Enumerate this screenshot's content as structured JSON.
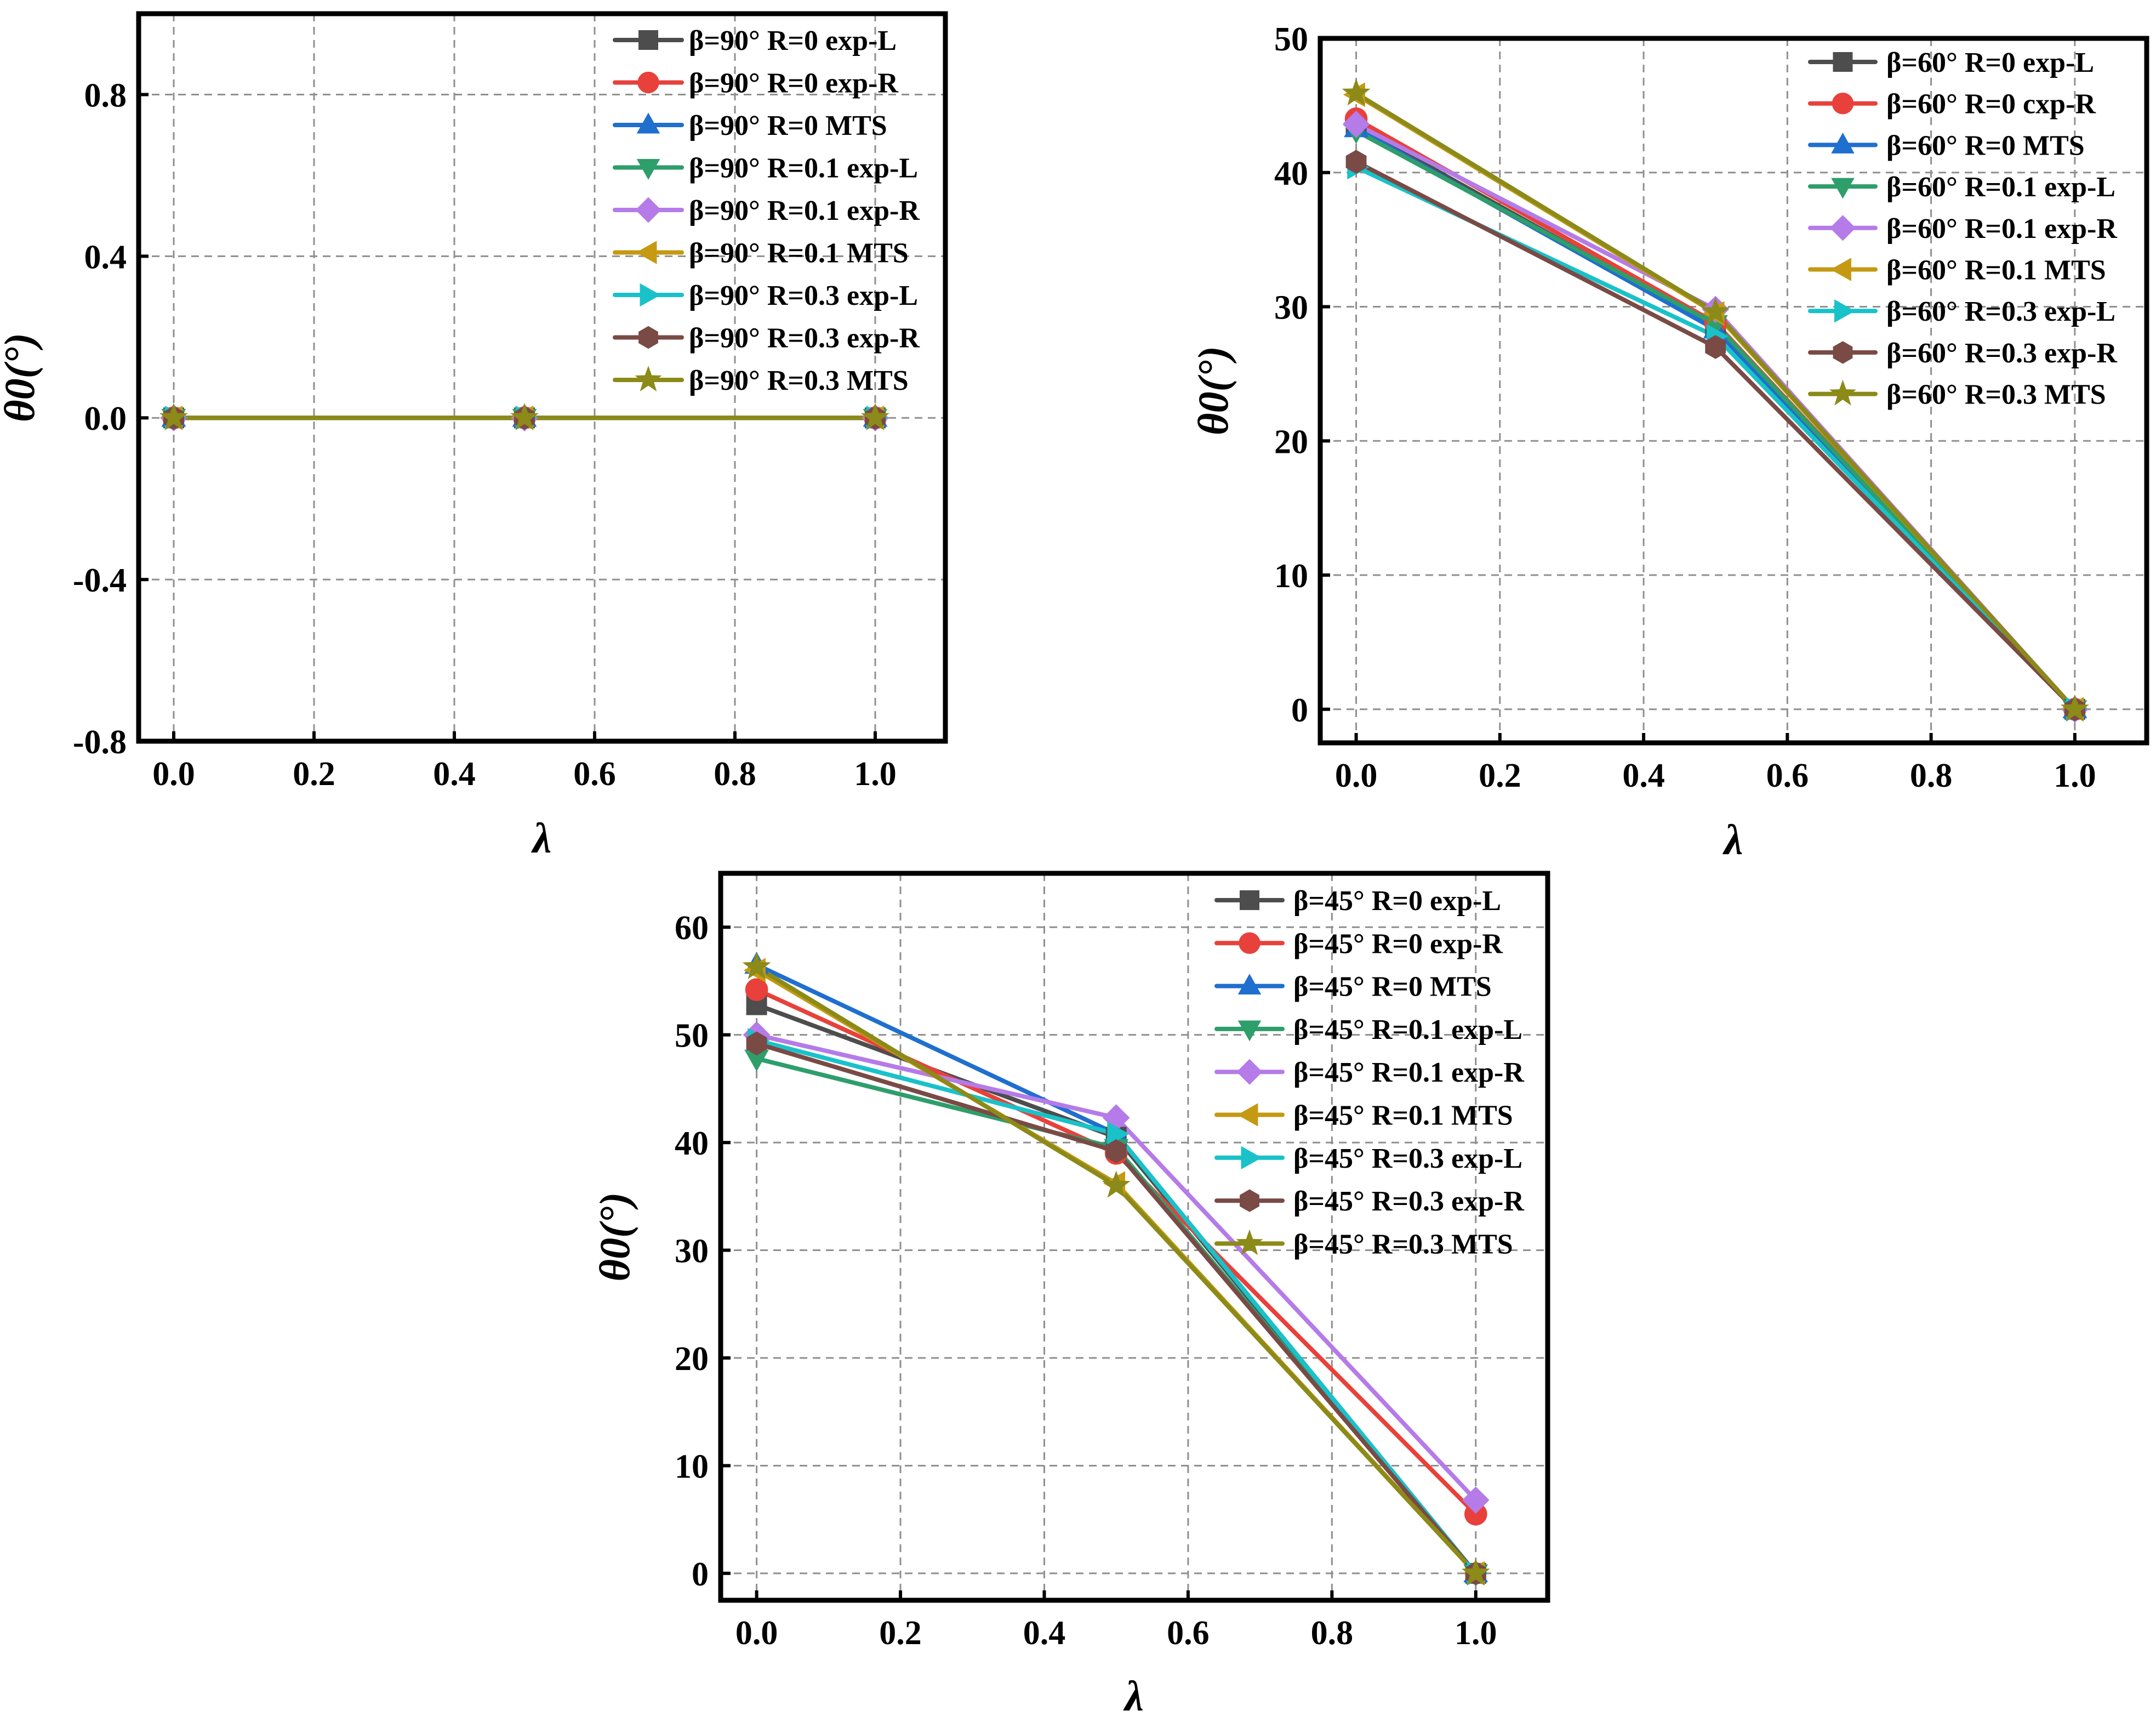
{
  "chart_data": [
    {
      "type": "line",
      "panel": "beta-90",
      "xlabel": "λ",
      "ylabel": "θ0(°)",
      "xlim": [
        -0.05,
        1.1
      ],
      "ylim": [
        -0.8,
        1.0
      ],
      "xticks": [
        0.0,
        0.2,
        0.4,
        0.6,
        0.8,
        1.0
      ],
      "yticks": [
        -0.8,
        -0.4,
        0.0,
        0.4,
        0.8
      ],
      "xtick_labels": [
        "0.0",
        "0.2",
        "0.4",
        "0.6",
        "0.8",
        "1.0"
      ],
      "ytick_labels": [
        "-0.8",
        "-0.4",
        "0.0",
        "0.4",
        "0.8"
      ],
      "grid": true,
      "legend_position": "top-right",
      "x": [
        0.0,
        0.5,
        1.0
      ],
      "series": [
        {
          "name": "β=90° R=0 exp-L",
          "beta": "β=90°",
          "r": "R=0",
          "suffix": "exp-L",
          "color": "#4d4d4d",
          "marker": "square",
          "values": [
            0,
            0,
            0
          ]
        },
        {
          "name": "β=90° R=0 exp-R",
          "beta": "β=90°",
          "r": "R=0",
          "suffix": "exp-R",
          "color": "#e8413b",
          "marker": "circle",
          "values": [
            0,
            0,
            0
          ]
        },
        {
          "name": "β=90° R=0 MTS",
          "beta": "β=90°",
          "r": "R=0",
          "suffix": "MTS",
          "color": "#1f6fcf",
          "marker": "triangle-up",
          "values": [
            0,
            0,
            0
          ]
        },
        {
          "name": "β=90° R=0.1 exp-L",
          "beta": "β=90°",
          "r": "R=0.1",
          "suffix": "exp-L",
          "color": "#2e9e6b",
          "marker": "triangle-down",
          "values": [
            0,
            0,
            0
          ]
        },
        {
          "name": "β=90° R=0.1 exp-R",
          "beta": "β=90°",
          "r": "R=0.1",
          "suffix": "exp-R",
          "color": "#b57be8",
          "marker": "diamond",
          "values": [
            0,
            0,
            0
          ]
        },
        {
          "name": "β=90° R=0.1 MTS",
          "beta": "β=90°",
          "r": "R=0.1",
          "suffix": "MTS",
          "color": "#c59a12",
          "marker": "triangle-left",
          "values": [
            0,
            0,
            0
          ]
        },
        {
          "name": "β=90° R=0.3 exp-L",
          "beta": "β=90°",
          "r": "R=0.3",
          "suffix": "exp-L",
          "color": "#19c2c8",
          "marker": "triangle-right",
          "values": [
            0,
            0,
            0
          ]
        },
        {
          "name": "β=90° R=0.3 exp-R",
          "beta": "β=90°",
          "r": "R=0.3",
          "suffix": "exp-R",
          "color": "#7a4a45",
          "marker": "hexagon",
          "values": [
            0,
            0,
            0
          ]
        },
        {
          "name": "β=90° R=0.3 MTS",
          "beta": "β=90°",
          "r": "R=0.3",
          "suffix": "MTS",
          "color": "#8c8a18",
          "marker": "star",
          "values": [
            0,
            0,
            0
          ]
        }
      ]
    },
    {
      "type": "line",
      "panel": "beta-60",
      "xlabel": "λ",
      "ylabel": "θ0(°)",
      "xlim": [
        -0.05,
        1.1
      ],
      "ylim": [
        -2.5,
        50
      ],
      "xticks": [
        0.0,
        0.2,
        0.4,
        0.6,
        0.8,
        1.0
      ],
      "yticks": [
        0,
        10,
        20,
        30,
        40,
        50
      ],
      "xtick_labels": [
        "0.0",
        "0.2",
        "0.4",
        "0.6",
        "0.8",
        "1.0"
      ],
      "ytick_labels": [
        "0",
        "10",
        "20",
        "30",
        "40",
        "50"
      ],
      "grid": true,
      "legend_position": "top-right",
      "x": [
        0.0,
        0.5,
        1.0
      ],
      "series": [
        {
          "name": "β=60° R=0 exp-L",
          "beta": "β=60°",
          "r": "R=0",
          "suffix": "exp-L",
          "color": "#4d4d4d",
          "marker": "square",
          "values": [
            43.5,
            28.5,
            0
          ]
        },
        {
          "name": "β=60° R=0 cxp-R",
          "beta": "β=60°",
          "r": "R=0",
          "suffix": "cxp-R",
          "color": "#e8413b",
          "marker": "circle",
          "values": [
            44.0,
            28.8,
            0
          ]
        },
        {
          "name": "β=60° R=0 MTS",
          "beta": "β=60°",
          "r": "R=0",
          "suffix": "MTS",
          "color": "#1f6fcf",
          "marker": "triangle-up",
          "values": [
            43.3,
            28.3,
            0
          ]
        },
        {
          "name": "β=60° R=0.1 exp-L",
          "beta": "β=60°",
          "r": "R=0.1",
          "suffix": "exp-L",
          "color": "#2e9e6b",
          "marker": "triangle-down",
          "values": [
            43.1,
            28.7,
            0
          ]
        },
        {
          "name": "β=60° R=0.1 exp-R",
          "beta": "β=60°",
          "r": "R=0.1",
          "suffix": "exp-R",
          "color": "#b57be8",
          "marker": "diamond",
          "values": [
            43.6,
            29.8,
            0
          ]
        },
        {
          "name": "β=60° R=0.1 MTS",
          "beta": "β=60°",
          "r": "R=0.1",
          "suffix": "MTS",
          "color": "#c59a12",
          "marker": "triangle-left",
          "values": [
            45.8,
            29.5,
            0
          ]
        },
        {
          "name": "β=60° R=0.3 exp-L",
          "beta": "β=60°",
          "r": "R=0.3",
          "suffix": "exp-L",
          "color": "#19c2c8",
          "marker": "triangle-right",
          "values": [
            40.4,
            27.8,
            0
          ]
        },
        {
          "name": "β=60° R=0.3 exp-R",
          "beta": "β=60°",
          "r": "R=0.3",
          "suffix": "exp-R",
          "color": "#7a4a45",
          "marker": "hexagon",
          "values": [
            40.8,
            27.0,
            0
          ]
        },
        {
          "name": "β=60° R=0.3 MTS",
          "beta": "β=60°",
          "r": "R=0.3",
          "suffix": "MTS",
          "color": "#8c8a18",
          "marker": "star",
          "values": [
            45.9,
            29.6,
            0
          ]
        }
      ]
    },
    {
      "type": "line",
      "panel": "beta-45",
      "xlabel": "λ",
      "ylabel": "θ0(°)",
      "xlim": [
        -0.05,
        1.1
      ],
      "ylim": [
        -2.5,
        65
      ],
      "xticks": [
        0.0,
        0.2,
        0.4,
        0.6,
        0.8,
        1.0
      ],
      "yticks": [
        0,
        10,
        20,
        30,
        40,
        50,
        60
      ],
      "xtick_labels": [
        "0.0",
        "0.2",
        "0.4",
        "0.6",
        "0.8",
        "1.0"
      ],
      "ytick_labels": [
        "0",
        "10",
        "20",
        "30",
        "40",
        "50",
        "60"
      ],
      "grid": true,
      "legend_position": "top-right",
      "x": [
        0.0,
        0.5,
        1.0
      ],
      "series": [
        {
          "name": "β=45° R=0 exp-L",
          "beta": "β=45°",
          "r": "R=0",
          "suffix": "exp-L",
          "color": "#4d4d4d",
          "marker": "square",
          "values": [
            52.8,
            40.5,
            0
          ]
        },
        {
          "name": "β=45° R=0 exp-R",
          "beta": "β=45°",
          "r": "R=0",
          "suffix": "exp-R",
          "color": "#e8413b",
          "marker": "circle",
          "values": [
            54.2,
            39.0,
            5.5
          ]
        },
        {
          "name": "β=45° R=0 MTS",
          "beta": "β=45°",
          "r": "R=0",
          "suffix": "MTS",
          "color": "#1f6fcf",
          "marker": "triangle-up",
          "values": [
            56.5,
            40.8,
            0
          ]
        },
        {
          "name": "β=45° R=0.1 exp-L",
          "beta": "β=45°",
          "r": "R=0.1",
          "suffix": "exp-L",
          "color": "#2e9e6b",
          "marker": "triangle-down",
          "values": [
            47.8,
            39.5,
            0
          ]
        },
        {
          "name": "β=45° R=0.1 exp-R",
          "beta": "β=45°",
          "r": "R=0.1",
          "suffix": "exp-R",
          "color": "#b57be8",
          "marker": "diamond",
          "values": [
            50.0,
            42.3,
            6.8
          ]
        },
        {
          "name": "β=45° R=0.1 MTS",
          "beta": "β=45°",
          "r": "R=0.1",
          "suffix": "MTS",
          "color": "#c59a12",
          "marker": "triangle-left",
          "values": [
            56.0,
            36.2,
            0
          ]
        },
        {
          "name": "β=45° R=0.3 exp-L",
          "beta": "β=45°",
          "r": "R=0.3",
          "suffix": "exp-L",
          "color": "#19c2c8",
          "marker": "triangle-right",
          "values": [
            49.5,
            40.8,
            0
          ]
        },
        {
          "name": "β=45° R=0.3 exp-R",
          "beta": "β=45°",
          "r": "R=0.3",
          "suffix": "exp-R",
          "color": "#7a4a45",
          "marker": "hexagon",
          "values": [
            49.2,
            39.2,
            0
          ]
        },
        {
          "name": "β=45° R=0.3 MTS",
          "beta": "β=45°",
          "r": "R=0.3",
          "suffix": "MTS",
          "color": "#8c8a18",
          "marker": "star",
          "values": [
            56.3,
            36.0,
            0
          ]
        }
      ]
    }
  ]
}
